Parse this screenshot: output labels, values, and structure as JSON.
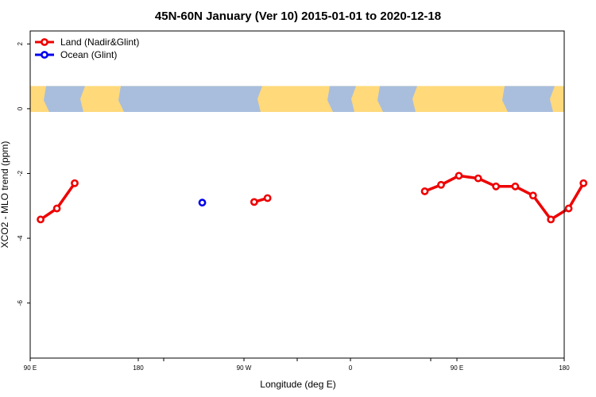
{
  "chart_data": {
    "type": "line",
    "title": "45N-60N January (Ver 10)   2015-01-01 to 2020-12-18",
    "xlabel": "Longitude (deg E)",
    "ylabel": "XCO2 - MLO trend (ppm)",
    "xlim": [
      90,
      450
    ],
    "ylim": [
      -7.7,
      2.4
    ],
    "x_ticks": [
      {
        "value": 90,
        "label": "90 E"
      },
      {
        "value": 180,
        "label": "180"
      },
      {
        "value": 270,
        "label": "90 W"
      },
      {
        "value": 360,
        "label": "0"
      },
      {
        "value": 450,
        "label": "90 E"
      },
      {
        "value": 540,
        "label": "180"
      }
    ],
    "y_ticks": [
      {
        "value": 2,
        "label": "2"
      },
      {
        "value": 0,
        "label": "0"
      },
      {
        "value": -2,
        "label": "-2"
      },
      {
        "value": -4,
        "label": "-4"
      },
      {
        "value": -6,
        "label": "-6"
      }
    ],
    "legend_position": "top-left",
    "map_band": {
      "y_min": -0.1,
      "y_max": 0.7,
      "land_color": "#FFD97A",
      "ocean_color": "#A9BEDD"
    },
    "series": [
      {
        "name": "Land (Nadir&Glint)",
        "color": "#EE0000",
        "segments": [
          [
            [
              97,
              -3.42
            ],
            [
              108,
              -3.08
            ],
            [
              120,
              -2.3
            ]
          ],
          [
            [
              241,
              -2.88
            ],
            [
              250,
              -2.76
            ]
          ],
          [
            [
              356,
              -2.55
            ],
            [
              367,
              -2.35
            ],
            [
              379,
              -2.07
            ],
            [
              392,
              -2.15
            ],
            [
              404,
              -2.4
            ],
            [
              417,
              -2.4
            ],
            [
              429,
              -2.68
            ],
            [
              441,
              -3.42
            ],
            [
              453,
              -3.08
            ],
            [
              463,
              -2.3
            ]
          ]
        ]
      },
      {
        "name": "Ocean (Glint)",
        "color": "#0000EE",
        "segments": [
          [
            [
              206,
              -2.9
            ]
          ]
        ]
      }
    ]
  }
}
